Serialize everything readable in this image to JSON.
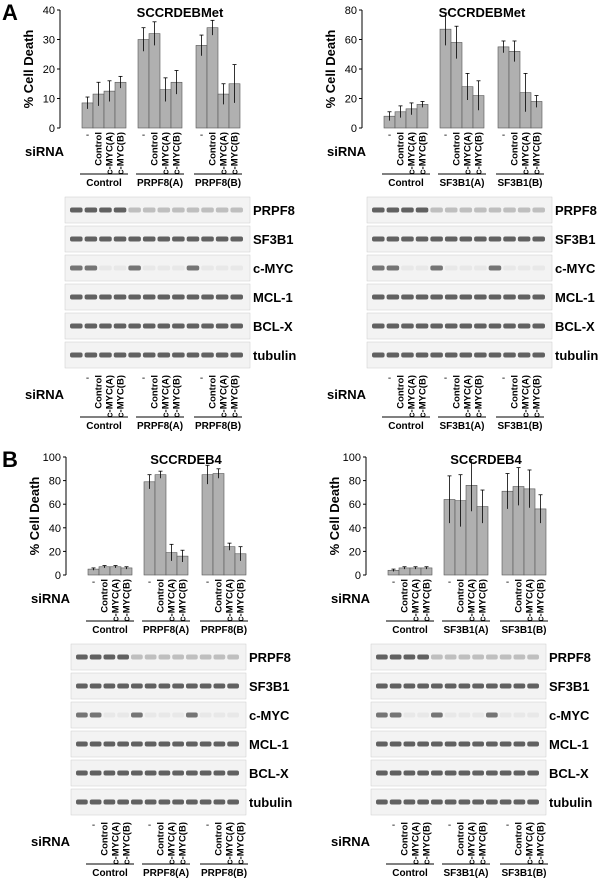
{
  "panels": [
    {
      "letter": "A",
      "show_letter": true,
      "title": "SCCRDEBMet",
      "ymax": 40,
      "ticks": [
        0,
        10,
        20,
        30,
        40
      ],
      "ylabel": "% Cell Death",
      "groups": [
        "Control",
        "PRPF8(A)",
        "PRPF8(B)"
      ],
      "siRNA": "siRNA",
      "lane_labels": [
        "-",
        "Control",
        "c-MYC(A)",
        "c-MYC(B)"
      ],
      "chart_data": {
        "type": "bar",
        "series": [
          {
            "values": [
              8.5,
              11.5,
              12.5,
              15.5
            ],
            "errors": [
              2,
              4,
              3.5,
              2
            ]
          },
          {
            "values": [
              30,
              32,
              13,
              15.5
            ],
            "errors": [
              4,
              4,
              4,
              4
            ]
          },
          {
            "values": [
              28,
              34,
              11.5,
              15
            ],
            "errors": [
              3.5,
              2.5,
              3.5,
              6.5
            ]
          }
        ]
      },
      "blots": [
        "PRPF8",
        "SF3B1",
        "c-MYC",
        "MCL-1",
        "BCL-X",
        "tubulin"
      ]
    },
    {
      "letter": "",
      "show_letter": false,
      "title": "SCCRDEBMet",
      "ymax": 80,
      "ticks": [
        0,
        20,
        40,
        60,
        80
      ],
      "ylabel": "% Cell Death",
      "groups": [
        "Control",
        "SF3B1(A)",
        "SF3B1(B)"
      ],
      "siRNA": "siRNA",
      "lane_labels": [
        "-",
        "Control",
        "c-MYC(A)",
        "c-MYC(B)"
      ],
      "chart_data": {
        "type": "bar",
        "series": [
          {
            "values": [
              8,
              11,
              13,
              16
            ],
            "errors": [
              3,
              4,
              4,
              2
            ]
          },
          {
            "values": [
              67,
              58,
              28,
              22
            ],
            "errors": [
              11,
              11,
              9,
              10
            ]
          },
          {
            "values": [
              55,
              52,
              24,
              18
            ],
            "errors": [
              4,
              7,
              13,
              4
            ]
          }
        ]
      },
      "blots": [
        "PRPF8",
        "SF3B1",
        "c-MYC",
        "MCL-1",
        "BCL-X",
        "tubulin"
      ]
    },
    {
      "letter": "B",
      "show_letter": true,
      "title": "SCCRDEB4",
      "ymax": 100,
      "ticks": [
        0,
        20,
        40,
        60,
        80,
        100
      ],
      "ylabel": "% Cell Death",
      "groups": [
        "Control",
        "PRPF8(A)",
        "PRPF8(B)"
      ],
      "siRNA": "siRNA",
      "lane_labels": [
        "-",
        "Control",
        "c-MYC(A)",
        "c-MYC(B)"
      ],
      "chart_data": {
        "type": "bar",
        "series": [
          {
            "values": [
              5,
              7,
              7,
              6
            ],
            "errors": [
              1,
              1,
              1,
              1
            ]
          },
          {
            "values": [
              79,
              85,
              19,
              16
            ],
            "errors": [
              6,
              3,
              7,
              5
            ]
          },
          {
            "values": [
              85,
              86,
              24,
              18
            ],
            "errors": [
              8,
              4,
              3,
              6
            ]
          }
        ]
      },
      "blots": [
        "PRPF8",
        "SF3B1",
        "c-MYC",
        "MCL-1",
        "BCL-X",
        "tubulin"
      ]
    },
    {
      "letter": "",
      "show_letter": false,
      "title": "SCCRDEB4",
      "ymax": 100,
      "ticks": [
        0,
        20,
        40,
        60,
        80,
        100
      ],
      "ylabel": "% Cell Death",
      "groups": [
        "Control",
        "SF3B1(A)",
        "SF3B1(B)"
      ],
      "siRNA": "siRNA",
      "lane_labels": [
        "-",
        "Control",
        "c-MYC(A)",
        "c-MYC(B)"
      ],
      "chart_data": {
        "type": "bar",
        "series": [
          {
            "values": [
              4,
              6,
              6,
              6
            ],
            "errors": [
              1,
              1,
              1,
              1
            ]
          },
          {
            "values": [
              64,
              63,
              76,
              58
            ],
            "errors": [
              20,
              22,
              22,
              14
            ]
          },
          {
            "values": [
              71,
              75,
              73,
              56
            ],
            "errors": [
              15,
              16,
              16,
              12
            ]
          }
        ]
      },
      "blots": [
        "PRPF8",
        "SF3B1",
        "c-MYC",
        "MCL-1",
        "BCL-X",
        "tubulin"
      ]
    }
  ]
}
